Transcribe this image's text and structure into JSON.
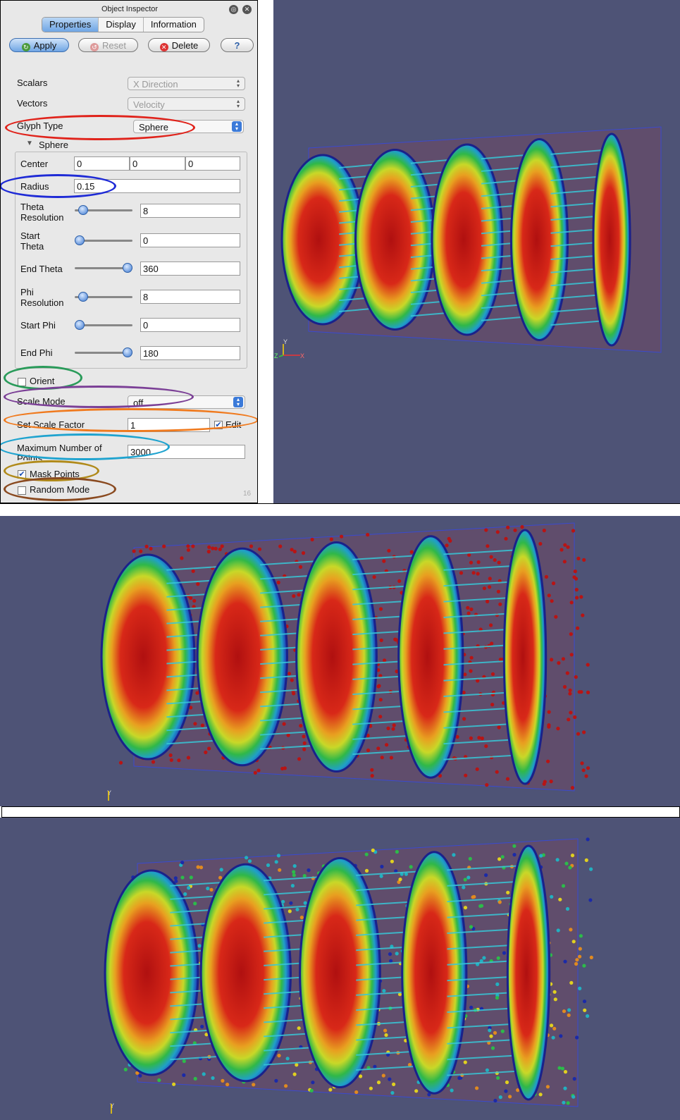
{
  "inspector": {
    "title": "Object Inspector",
    "page_num": "16",
    "tabs": [
      "Properties",
      "Display",
      "Information"
    ],
    "buttons": {
      "apply": "Apply",
      "reset": "Reset",
      "delete": "Delete",
      "help": "?"
    },
    "scalars": {
      "label": "Scalars",
      "value": "X Direction"
    },
    "vectors": {
      "label": "Vectors",
      "value": "Velocity"
    },
    "glyph_type": {
      "label": "Glyph Type",
      "value": "Sphere"
    },
    "sphere_section": "Sphere",
    "center": {
      "label": "Center",
      "values": [
        "0",
        "0",
        "0"
      ]
    },
    "radius": {
      "label": "Radius",
      "value": "0.15"
    },
    "theta_resolution": {
      "label_1": "Theta",
      "label_2": "Resolution",
      "value": "8",
      "level": 0.08
    },
    "start_theta": {
      "label_1": "Start",
      "label_2": "Theta",
      "value": "0",
      "level": 0.0
    },
    "end_theta": {
      "label": "End Theta",
      "value": "360",
      "level": 1.0
    },
    "phi_resolution": {
      "label_1": "Phi",
      "label_2": "Resolution",
      "value": "8",
      "level": 0.08
    },
    "start_phi": {
      "label": "Start Phi",
      "value": "0",
      "level": 0.0
    },
    "end_phi": {
      "label": "End Phi",
      "value": "180",
      "level": 1.0
    },
    "orient": {
      "label": "Orient",
      "checked": false
    },
    "scale_mode": {
      "label": "Scale Mode",
      "value": "off"
    },
    "set_scale_factor": {
      "label": "Set Scale Factor",
      "value": "1",
      "edit_label": "Edit",
      "edit_checked": true
    },
    "max_points": {
      "label_1": "Maximum Number of",
      "label_2": "Points",
      "value": "3000"
    },
    "mask_points": {
      "label": "Mask Points",
      "checked": true
    },
    "random_mode": {
      "label": "Random Mode",
      "checked": false
    }
  },
  "viewports": {
    "top": {
      "axis_y": "Y",
      "axis_x": "X",
      "axis_z": "Z"
    },
    "middle": {
      "axis_y": "Y"
    },
    "bottom": {
      "axis_y": "Y"
    }
  },
  "colors": {
    "background": "#4e5376",
    "highlight_glyph": "#e0231b",
    "highlight_radius": "#1f2bd6",
    "highlight_orient": "#2a9b5a",
    "highlight_scale_mode": "#7b3f96",
    "highlight_scale_factor": "#f07a1e",
    "highlight_max_points": "#1fa3cf",
    "highlight_mask": "#b08a1a",
    "highlight_random": "#8a4a20"
  }
}
